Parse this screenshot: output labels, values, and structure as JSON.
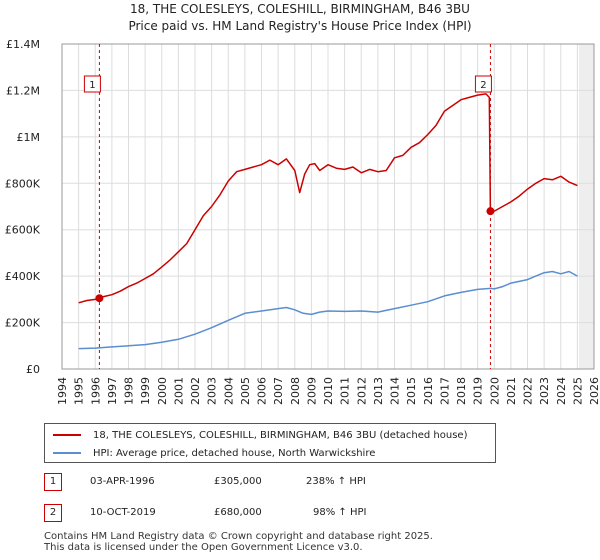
{
  "chart_data": {
    "type": "line",
    "title": "18, THE COLESLEYS, COLESHILL, BIRMINGHAM, B46 3BU",
    "subtitle": "Price paid vs. HM Land Registry's House Price Index (HPI)",
    "xlabel": "",
    "ylabel": "",
    "xlim": [
      1994,
      2026
    ],
    "ylim": [
      0,
      1400000
    ],
    "yticks": [
      0,
      200000,
      400000,
      600000,
      800000,
      1000000,
      1200000,
      1400000
    ],
    "ytick_labels": [
      "£0",
      "£200K",
      "£400K",
      "£600K",
      "£800K",
      "£1M",
      "£1.2M",
      "£1.4M"
    ],
    "xticks": [
      1994,
      1995,
      1996,
      1997,
      1998,
      1999,
      2000,
      2001,
      2002,
      2003,
      2004,
      2005,
      2006,
      2007,
      2008,
      2009,
      2010,
      2011,
      2012,
      2013,
      2014,
      2015,
      2016,
      2017,
      2018,
      2019,
      2020,
      2021,
      2022,
      2023,
      2024,
      2025,
      2026
    ],
    "grid": true,
    "series": [
      {
        "name": "18, THE COLESLEYS, COLESHILL, BIRMINGHAM, B46 3BU (detached house)",
        "color": "#cc0000",
        "x": [
          1995.0,
          1995.5,
          1996.0,
          1996.25,
          1996.5,
          1997.0,
          1997.5,
          1998.0,
          1998.5,
          1999.0,
          1999.5,
          2000.0,
          2000.5,
          2001.0,
          2001.5,
          2002.0,
          2002.5,
          2003.0,
          2003.5,
          2004.0,
          2004.5,
          2005.0,
          2005.5,
          2006.0,
          2006.5,
          2007.0,
          2007.5,
          2008.0,
          2008.3,
          2008.6,
          2008.9,
          2009.2,
          2009.5,
          2010.0,
          2010.5,
          2011.0,
          2011.5,
          2012.0,
          2012.5,
          2013.0,
          2013.5,
          2014.0,
          2014.5,
          2015.0,
          2015.5,
          2016.0,
          2016.5,
          2017.0,
          2017.5,
          2018.0,
          2018.5,
          2019.0,
          2019.5,
          2019.7,
          2019.77,
          2020.0,
          2020.5,
          2021.0,
          2021.5,
          2022.0,
          2022.5,
          2023.0,
          2023.5,
          2024.0,
          2024.5,
          2025.0
        ],
        "y": [
          285000,
          295000,
          300000,
          305000,
          312000,
          320000,
          335000,
          355000,
          370000,
          390000,
          410000,
          440000,
          470000,
          505000,
          540000,
          600000,
          660000,
          700000,
          750000,
          810000,
          850000,
          860000,
          870000,
          880000,
          900000,
          880000,
          905000,
          855000,
          760000,
          840000,
          880000,
          885000,
          855000,
          880000,
          865000,
          860000,
          870000,
          845000,
          860000,
          850000,
          855000,
          910000,
          920000,
          955000,
          975000,
          1010000,
          1050000,
          1110000,
          1135000,
          1160000,
          1170000,
          1180000,
          1185000,
          1170000,
          680000,
          680000,
          700000,
          720000,
          745000,
          775000,
          800000,
          820000,
          815000,
          830000,
          805000,
          790000
        ]
      },
      {
        "name": "HPI: Average price, detached house, North Warwickshire",
        "color": "#5a8ed0",
        "x": [
          1995.0,
          1996.0,
          1997.0,
          1998.0,
          1999.0,
          2000.0,
          2001.0,
          2002.0,
          2003.0,
          2004.0,
          2005.0,
          2006.0,
          2007.0,
          2007.5,
          2008.0,
          2008.5,
          2009.0,
          2009.5,
          2010.0,
          2011.0,
          2012.0,
          2013.0,
          2014.0,
          2015.0,
          2016.0,
          2017.0,
          2018.0,
          2019.0,
          2019.77,
          2020.0,
          2020.5,
          2021.0,
          2022.0,
          2022.5,
          2023.0,
          2023.5,
          2024.0,
          2024.5,
          2025.0
        ],
        "y": [
          88000,
          90000,
          95000,
          100000,
          105000,
          115000,
          128000,
          150000,
          178000,
          210000,
          240000,
          250000,
          260000,
          265000,
          255000,
          240000,
          235000,
          245000,
          250000,
          248000,
          250000,
          245000,
          260000,
          275000,
          290000,
          315000,
          330000,
          343000,
          347000,
          345000,
          355000,
          370000,
          385000,
          400000,
          415000,
          420000,
          410000,
          420000,
          400000
        ]
      }
    ],
    "annotations": [
      {
        "label": "1",
        "x": 1996.25,
        "y": 305000
      },
      {
        "label": "2",
        "x": 2019.77,
        "y": 680000
      }
    ]
  },
  "legend": {
    "property_label": "18, THE COLESLEYS, COLESHILL, BIRMINGHAM, B46 3BU (detached house)",
    "hpi_label": "HPI: Average price, detached house, North Warwickshire",
    "property_color": "#cc0000",
    "hpi_color": "#5a8ed0"
  },
  "sales": [
    {
      "num": "1",
      "date": "03-APR-1996",
      "price": "£305,000",
      "change": "238% ↑ HPI"
    },
    {
      "num": "2",
      "date": "10-OCT-2019",
      "price": "£680,000",
      "change": "98% ↑ HPI"
    }
  ],
  "footer": {
    "line1": "Contains HM Land Registry data © Crown copyright and database right 2025.",
    "line2": "This data is licensed under the Open Government Licence v3.0."
  }
}
